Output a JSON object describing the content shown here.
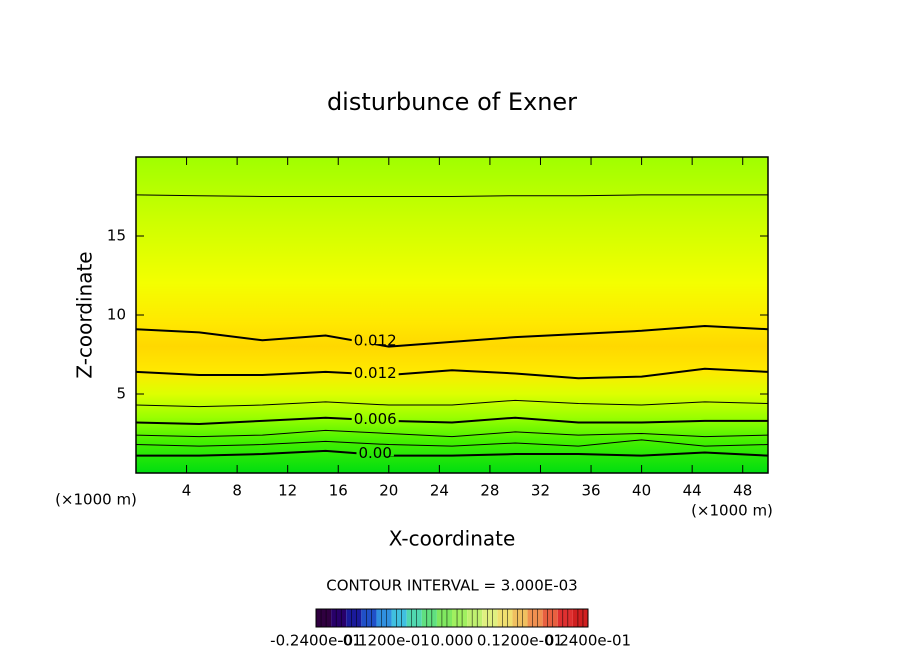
{
  "chart_data": {
    "type": "contour",
    "title": "disturbunce of Exner",
    "x_label": "X-coordinate",
    "y_label": "Z-coordinate",
    "x_unit": "(×1000 m)",
    "y_unit": "(×1000 m)",
    "xlim": [
      0,
      50
    ],
    "ylim": [
      0,
      20
    ],
    "xticks": [
      4,
      8,
      12,
      16,
      20,
      24,
      28,
      32,
      36,
      40,
      44,
      48
    ],
    "yticks": [
      5,
      10,
      15
    ],
    "x": [
      0,
      5,
      10,
      15,
      20,
      25,
      30,
      35,
      40,
      45,
      50
    ],
    "contours": [
      {
        "y": [
          17.6,
          17.55,
          17.5,
          17.5,
          17.5,
          17.5,
          17.55,
          17.55,
          17.6,
          17.6,
          17.6
        ],
        "width": 1
      },
      {
        "label": "0.012",
        "y": [
          9.1,
          8.9,
          8.4,
          8.7,
          8.0,
          8.3,
          8.6,
          8.8,
          9.0,
          9.3,
          9.1
        ],
        "width": 2
      },
      {
        "label": "0.012",
        "y": [
          6.4,
          6.2,
          6.2,
          6.4,
          6.2,
          6.5,
          6.3,
          6.0,
          6.1,
          6.6,
          6.4
        ],
        "width": 2
      },
      {
        "y": [
          4.3,
          4.2,
          4.3,
          4.5,
          4.3,
          4.3,
          4.6,
          4.4,
          4.3,
          4.5,
          4.4
        ],
        "width": 1
      },
      {
        "label": "0.006",
        "y": [
          3.2,
          3.1,
          3.3,
          3.5,
          3.3,
          3.2,
          3.5,
          3.2,
          3.2,
          3.3,
          3.3
        ],
        "width": 2
      },
      {
        "y": [
          2.4,
          2.3,
          2.4,
          2.7,
          2.5,
          2.3,
          2.6,
          2.4,
          2.5,
          2.3,
          2.4
        ],
        "width": 1
      },
      {
        "y": [
          1.8,
          1.7,
          1.8,
          2.0,
          1.8,
          1.7,
          1.9,
          1.7,
          2.1,
          1.7,
          1.8
        ],
        "width": 1
      },
      {
        "label": "0.00",
        "y": [
          1.1,
          1.1,
          1.2,
          1.4,
          1.1,
          1.1,
          1.2,
          1.2,
          1.1,
          1.3,
          1.1
        ],
        "width": 2
      }
    ],
    "shading": [
      {
        "z": 0,
        "color": "#00dd10"
      },
      {
        "z": 2,
        "color": "#44f000"
      },
      {
        "z": 3.5,
        "color": "#99ff00"
      },
      {
        "z": 5,
        "color": "#ddff00"
      },
      {
        "z": 6.5,
        "color": "#ffe800"
      },
      {
        "z": 8,
        "color": "#ffd800"
      },
      {
        "z": 9.5,
        "color": "#ffe800"
      },
      {
        "z": 12,
        "color": "#f4ff00"
      },
      {
        "z": 16,
        "color": "#ccff00"
      },
      {
        "z": 20,
        "color": "#a0ff00"
      }
    ],
    "contour_interval_text": "CONTOUR INTERVAL = 3.000E-03",
    "colorbar": {
      "colors": [
        "#300040",
        "#28006a",
        "#1a1a9a",
        "#2050c8",
        "#3090e0",
        "#40c0e0",
        "#50d8b0",
        "#60e080",
        "#80e860",
        "#a0f060",
        "#c0f070",
        "#e0f080",
        "#f0e070",
        "#f0c060",
        "#f09050",
        "#e86040",
        "#e03030",
        "#d02020"
      ],
      "labels": [
        "-0.2400e-01",
        "-0.1200e-01",
        "0.000",
        "0.1200e-01",
        "0.2400e-01"
      ]
    }
  }
}
